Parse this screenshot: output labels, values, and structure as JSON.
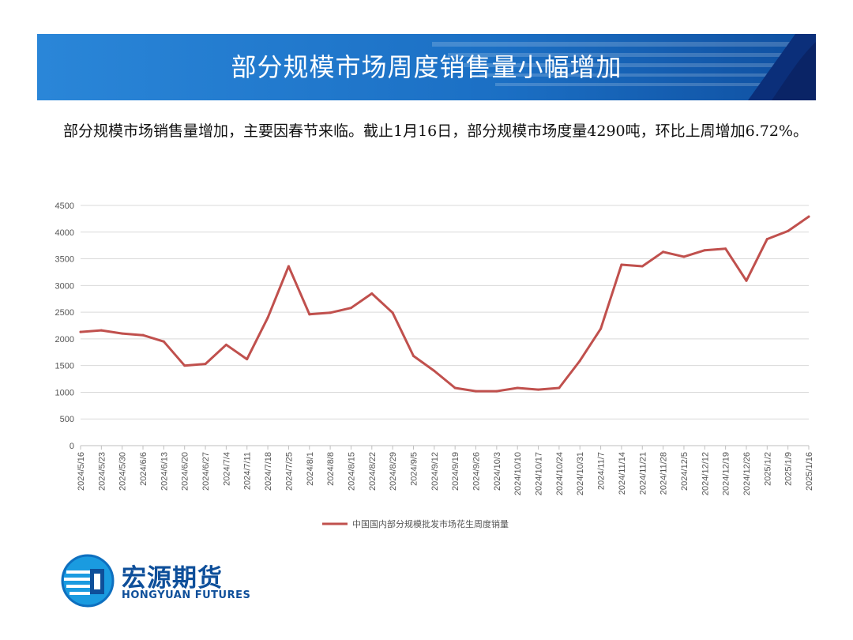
{
  "header": {
    "title": "部分规模市场周度销售量小幅增加"
  },
  "summary": {
    "text": "部分规模市场销售量增加，主要因春节来临。截止1月16日，部分规模市场度量4290吨，环比上周增加6.72%。"
  },
  "brand": {
    "name_cn": "宏源期货",
    "name_en": "HONGYUAN FUTURES",
    "color": "#0e4f9a"
  },
  "colors": {
    "banner": "#1e73c8",
    "line": "#c0504d",
    "grid": "#d9d9d9"
  },
  "chart_data": {
    "type": "line",
    "categories": [
      "2024/5/16",
      "2024/5/23",
      "2024/5/30",
      "2024/6/6",
      "2024/6/13",
      "2024/6/20",
      "2024/6/27",
      "2024/7/4",
      "2024/7/11",
      "2024/7/18",
      "2024/7/25",
      "2024/8/1",
      "2024/8/8",
      "2024/8/15",
      "2024/8/22",
      "2024/8/29",
      "2024/9/5",
      "2024/9/12",
      "2024/9/19",
      "2024/9/26",
      "2024/10/3",
      "2024/10/10",
      "2024/10/17",
      "2024/10/24",
      "2024/10/31",
      "2024/11/7",
      "2024/11/14",
      "2024/11/21",
      "2024/11/28",
      "2024/12/5",
      "2024/12/12",
      "2024/12/19",
      "2024/12/26",
      "2025/1/2",
      "2025/1/9",
      "2025/1/16"
    ],
    "series": [
      {
        "name": "中国国内部分规模批发市场花生周度销量",
        "values": [
          2130,
          2160,
          2100,
          2070,
          1950,
          1500,
          1530,
          1890,
          1620,
          2400,
          3360,
          2460,
          2490,
          2580,
          2850,
          2490,
          1680,
          1400,
          1080,
          1020,
          1020,
          1080,
          1050,
          1080,
          1590,
          2190,
          3390,
          3360,
          3630,
          3540,
          3660,
          3690,
          3090,
          3870,
          4020,
          4290
        ]
      }
    ],
    "ylim": [
      0,
      4500
    ],
    "yticks": [
      0,
      500,
      1000,
      1500,
      2000,
      2500,
      3000,
      3500,
      4000,
      4500
    ],
    "grid": true,
    "legend": "bottom-center"
  }
}
